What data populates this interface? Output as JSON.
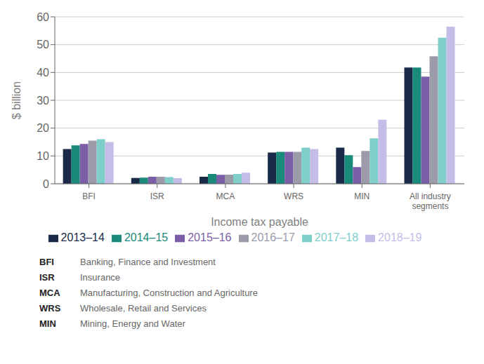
{
  "chart_data": {
    "type": "bar",
    "xlabel": "Income tax payable",
    "ylabel": "$ billion",
    "categories": [
      "BFI",
      "ISR",
      "MCA",
      "WRS",
      "MIN",
      "All industry\nsegments"
    ],
    "series": [
      {
        "name": "2013–14",
        "color": "#1a2b4a",
        "values": [
          12.5,
          2.1,
          2.5,
          11.2,
          13.0,
          41.8
        ]
      },
      {
        "name": "2014–15",
        "color": "#1a8a7a",
        "values": [
          13.8,
          2.2,
          3.5,
          11.5,
          10.3,
          41.8
        ]
      },
      {
        "name": "2015–16",
        "color": "#7b5ea7",
        "values": [
          14.3,
          2.5,
          3.2,
          11.5,
          6.0,
          38.5
        ]
      },
      {
        "name": "2016–17",
        "color": "#9b9baa",
        "values": [
          15.5,
          2.5,
          3.3,
          11.5,
          11.8,
          45.8
        ]
      },
      {
        "name": "2017–18",
        "color": "#7ececa",
        "values": [
          16.0,
          2.4,
          3.5,
          13.0,
          16.3,
          52.5
        ]
      },
      {
        "name": "2018–19",
        "color": "#c5bde8",
        "values": [
          15.0,
          2.0,
          4.0,
          12.5,
          23.0,
          56.5
        ]
      }
    ],
    "ylim": [
      0,
      60
    ],
    "yticks": [
      0,
      10,
      20,
      30,
      40,
      50,
      60
    ],
    "grid": true,
    "legend": "bottom",
    "annotations": [
      {
        "label": "BFI",
        "text": "Banking, Finance and Investment"
      },
      {
        "label": "ISR",
        "text": "Insurance"
      },
      {
        "label": "MCA",
        "text": "Manufacturing, Construction and Agriculture"
      },
      {
        "label": "WRS",
        "text": "Wholesale, Retail and Services"
      },
      {
        "label": "MIN",
        "text": "Mining, Energy and Water"
      }
    ]
  }
}
